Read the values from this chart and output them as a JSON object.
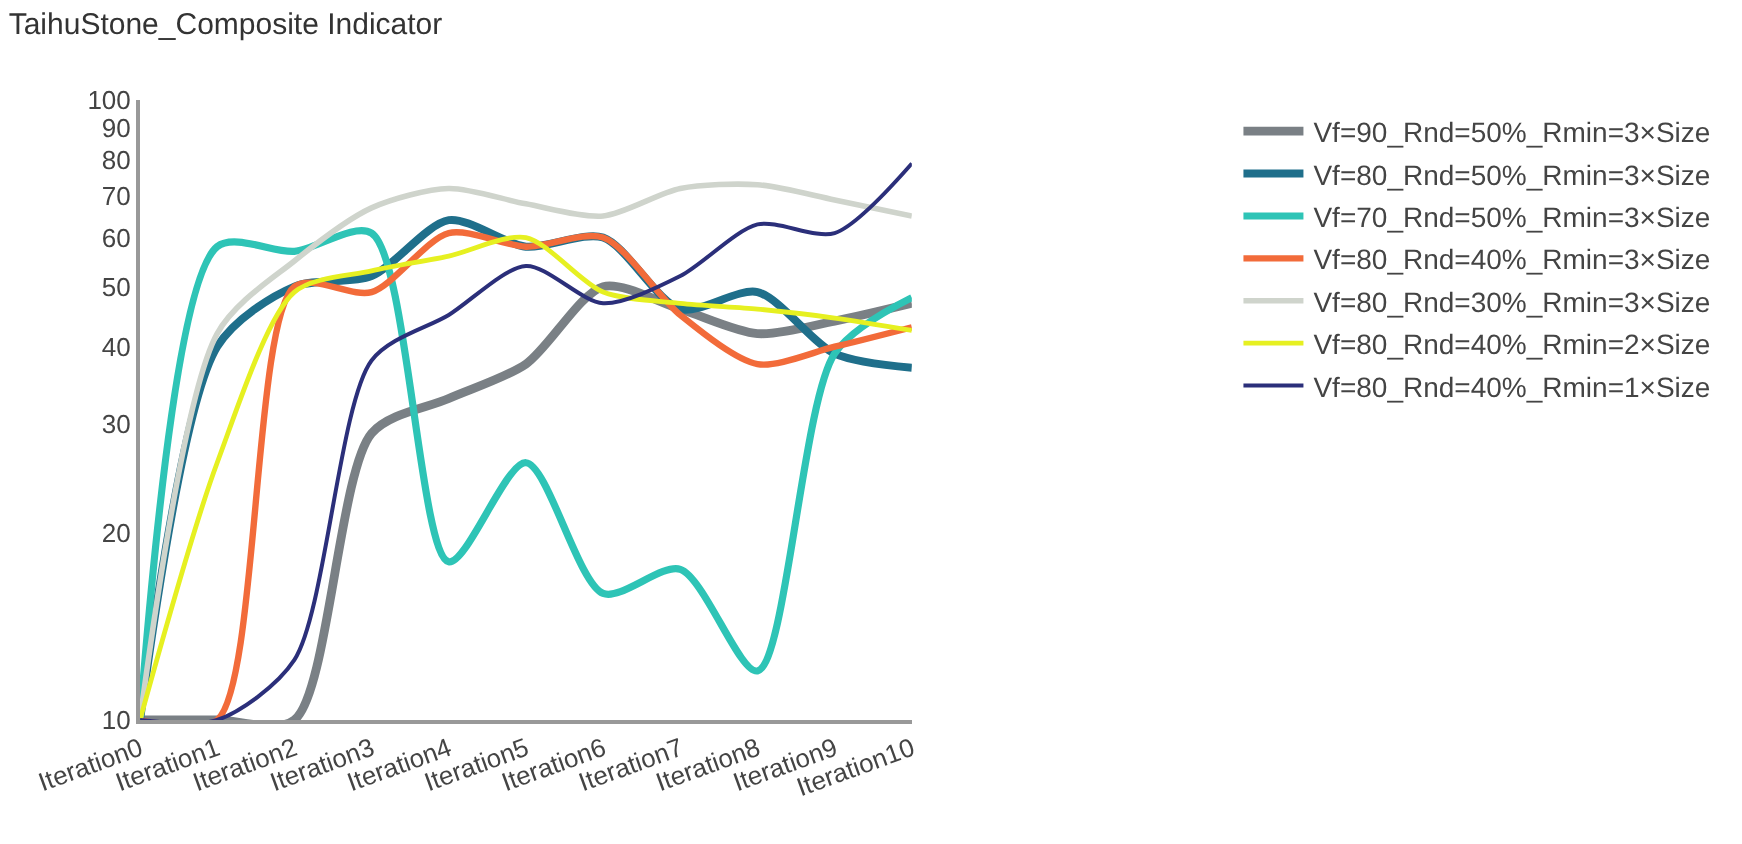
{
  "chart_data": {
    "type": "line",
    "title": "TaihuStone_Composite Indicator",
    "categories": [
      "Iteration0",
      "Iteration1",
      "Iteration2",
      "Iteration3",
      "Iteration4",
      "Iteration5",
      "Iteration6",
      "Iteration7",
      "Iteration8",
      "Iteration9",
      "Iteration10"
    ],
    "series": [
      {
        "name": "Vf=90_Rnd=50%_Rmin=3×Size",
        "color": "#7a8085",
        "values": [
          10,
          10,
          10,
          29,
          33,
          37.5,
          50,
          46,
          42,
          44,
          47
        ]
      },
      {
        "name": "Vf=80_Rnd=50%_Rmin=3×Size",
        "color": "#1f6f8b",
        "values": [
          10,
          40,
          50,
          52,
          64,
          58,
          60,
          46,
          49,
          39,
          37
        ]
      },
      {
        "name": "Vf=70_Rnd=50%_Rmin=3×Size",
        "color": "#2ec4b6",
        "values": [
          10,
          58,
          57,
          61,
          18,
          26,
          16,
          17.5,
          12,
          39,
          48
        ]
      },
      {
        "name": "Vf=80_Rnd=40%_Rmin=3×Size",
        "color": "#f26b3a",
        "values": [
          10,
          10,
          50,
          49,
          61,
          58,
          60,
          45,
          37.5,
          40,
          43
        ]
      },
      {
        "name": "Vf=80_Rnd=30%_Rmin=3×Size",
        "color": "#cfd4cc",
        "values": [
          10,
          42,
          55,
          67,
          72,
          68,
          65,
          72,
          73,
          69,
          65
        ]
      },
      {
        "name": "Vf=80_Rnd=40%_Rmin=2×Size",
        "color": "#e6f021",
        "values": [
          10,
          26,
          49,
          53,
          56,
          60,
          49,
          47,
          46,
          44.5,
          42.5
        ]
      },
      {
        "name": "Vf=80_Rnd=40%_Rmin=1×Size",
        "color": "#2b2f7a",
        "values": [
          10,
          10,
          12.5,
          38,
          45,
          54,
          47,
          52,
          63,
          61,
          79
        ]
      }
    ],
    "log": "y",
    "ylim": [
      10,
      100
    ],
    "yticks": [
      10,
      20,
      30,
      40,
      50,
      60,
      70,
      80,
      90,
      100
    ],
    "grid": false,
    "legend": "right",
    "marker": "none",
    "line_style": "solid"
  }
}
